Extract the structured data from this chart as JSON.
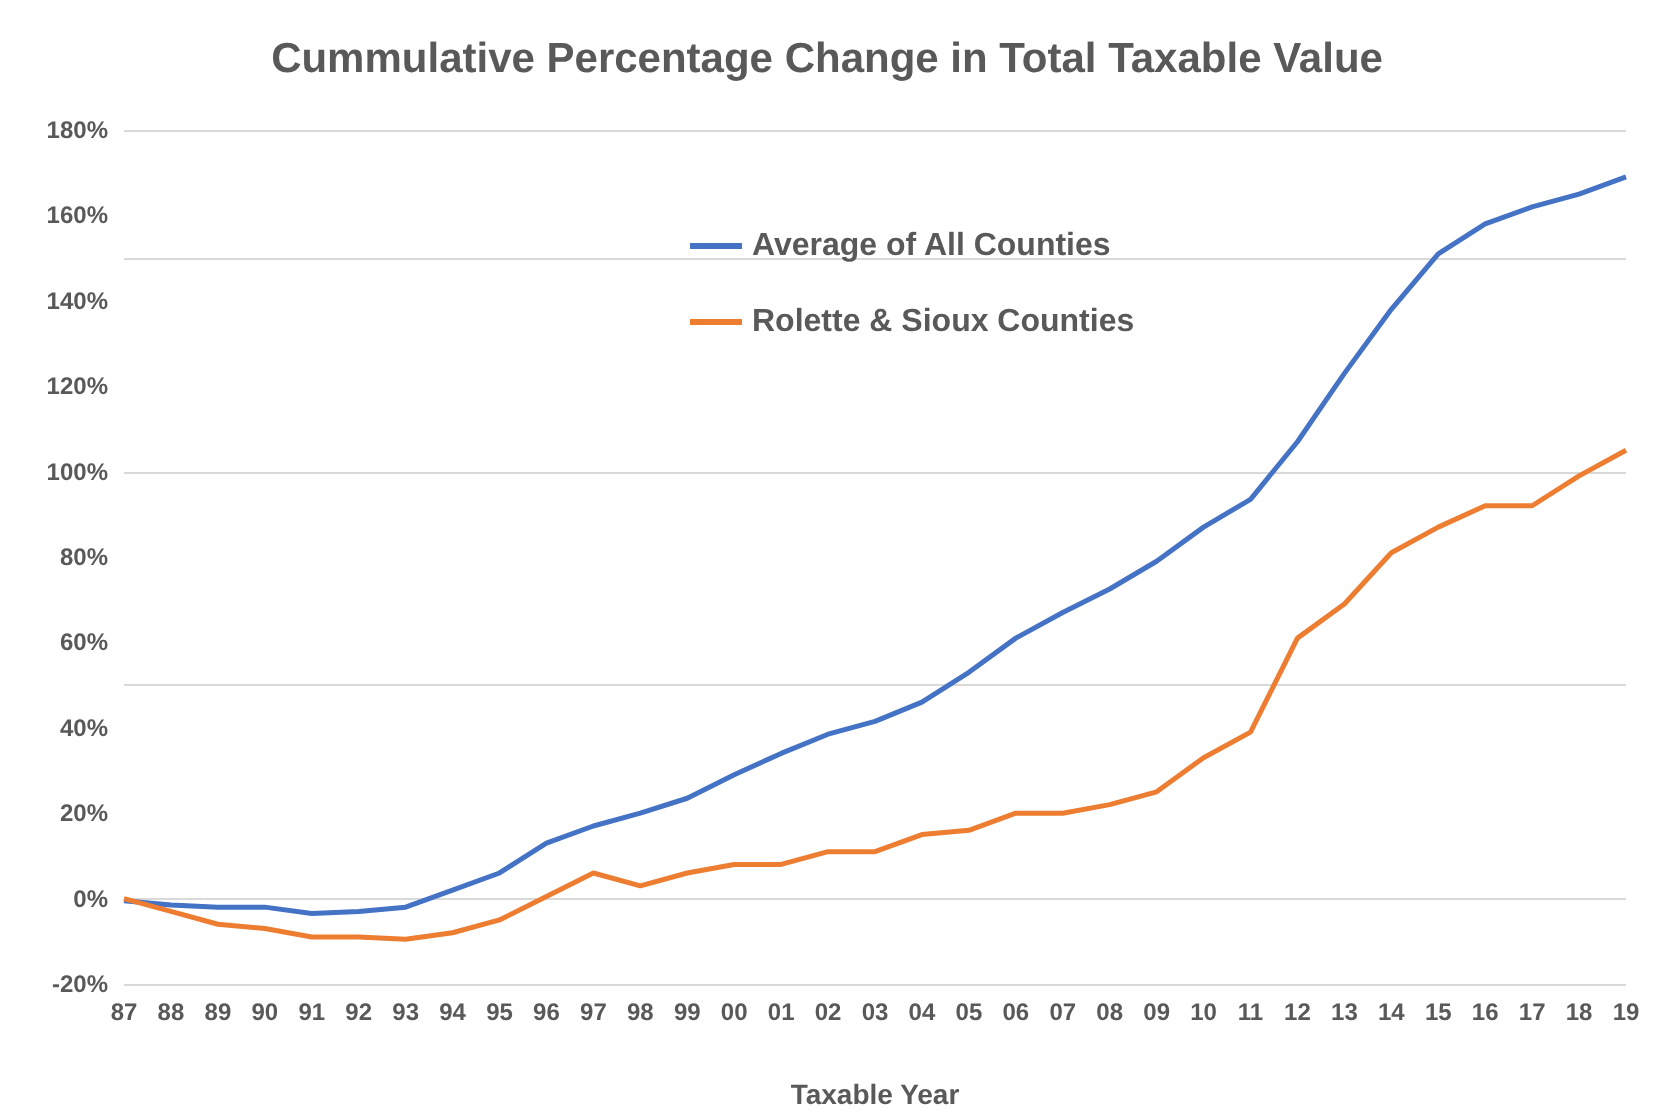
{
  "chart_data": {
    "type": "line",
    "title": "Cummulative Percentage Change in Total Taxable Value",
    "xlabel": "Taxable Year",
    "categories": [
      "87",
      "88",
      "89",
      "90",
      "91",
      "92",
      "93",
      "94",
      "95",
      "96",
      "97",
      "98",
      "99",
      "00",
      "01",
      "02",
      "03",
      "04",
      "05",
      "06",
      "07",
      "08",
      "09",
      "10",
      "11",
      "12",
      "13",
      "14",
      "15",
      "16",
      "17",
      "18",
      "19"
    ],
    "series": [
      {
        "name": "Average of All Counties",
        "color": "#4472c4",
        "values": [
          -0.5,
          -1.5,
          -2,
          -2,
          -3.5,
          -3,
          -2,
          2,
          6,
          13,
          17,
          20,
          23.5,
          29,
          34,
          38.5,
          41.5,
          46,
          53,
          61,
          67,
          72.5,
          79,
          87,
          93.5,
          107,
          123,
          138,
          151,
          158,
          162,
          165,
          169
        ]
      },
      {
        "name": "Rolette & Sioux Counties",
        "color": "#ed7d31",
        "values": [
          0,
          -3,
          -6,
          -7,
          -9,
          -9,
          -9.5,
          -8,
          -5,
          0.5,
          6,
          3,
          6,
          8,
          8,
          11,
          11,
          15,
          16,
          20,
          20,
          22,
          25,
          33,
          39,
          61,
          69,
          81,
          87,
          92,
          92,
          99,
          105
        ]
      }
    ],
    "ylim": [
      -20,
      180
    ],
    "yticks": [
      {
        "value": -20,
        "label": "-20%"
      },
      {
        "value": 0,
        "label": "0%"
      },
      {
        "value": 20,
        "label": "20%"
      },
      {
        "value": 40,
        "label": "40%"
      },
      {
        "value": 60,
        "label": "60%"
      },
      {
        "value": 80,
        "label": "80%"
      },
      {
        "value": 100,
        "label": "100%"
      },
      {
        "value": 120,
        "label": "120%"
      },
      {
        "value": 140,
        "label": "140%"
      },
      {
        "value": 160,
        "label": "160%"
      },
      {
        "value": 180,
        "label": "180%"
      }
    ],
    "grid": "y",
    "legend": "top",
    "marker": "none",
    "line_style": "solid"
  }
}
